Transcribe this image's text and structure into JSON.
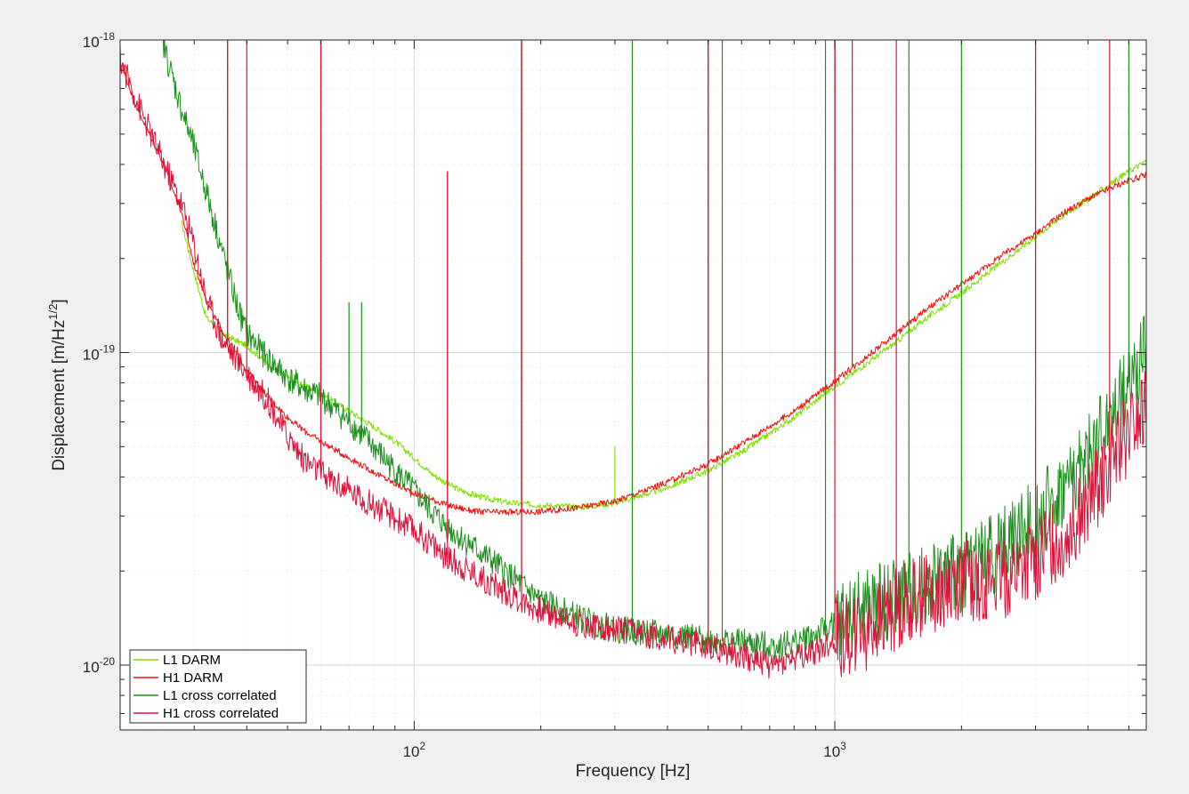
{
  "chart_data": {
    "type": "line",
    "title": "",
    "xlabel": "Frequency [Hz]",
    "ylabel_main": "Displacement [m/Hz",
    "ylabel_sup": "1/2",
    "ylabel_close": "]",
    "xscale": "log",
    "yscale": "log",
    "xlim": [
      20,
      5500
    ],
    "ylim": [
      6.2e-21,
      1e-18
    ],
    "grid": true,
    "legend_position": "bottom-left",
    "x_ticks": [
      {
        "value": 100,
        "base": "10",
        "exp": "2"
      },
      {
        "value": 1000,
        "base": "10",
        "exp": "3"
      }
    ],
    "y_ticks": [
      {
        "value": 1e-20,
        "base": "10",
        "exp": "-20"
      },
      {
        "value": 1e-19,
        "base": "10",
        "exp": "-19"
      },
      {
        "value": 1e-18,
        "base": "10",
        "exp": "-18"
      }
    ],
    "series": [
      {
        "name": "L1 DARM",
        "color": "#7fe000",
        "points": [
          [
            28,
            2.6e-19
          ],
          [
            30,
            1.8e-19
          ],
          [
            32,
            1.3e-19
          ],
          [
            35,
            1.15e-19
          ],
          [
            40,
            1.05e-19
          ],
          [
            45,
            9.2e-20
          ],
          [
            50,
            8.3e-20
          ],
          [
            55,
            7.8e-20
          ],
          [
            60,
            7.4e-20
          ],
          [
            70,
            6.5e-20
          ],
          [
            80,
            5.8e-20
          ],
          [
            90,
            5.2e-20
          ],
          [
            100,
            4.6e-20
          ],
          [
            110,
            4.1e-20
          ],
          [
            120,
            3.8e-20
          ],
          [
            130,
            3.6e-20
          ],
          [
            150,
            3.4e-20
          ],
          [
            170,
            3.3e-20
          ],
          [
            200,
            3.25e-20
          ],
          [
            250,
            3.2e-20
          ],
          [
            300,
            3.3e-20
          ],
          [
            350,
            3.5e-20
          ],
          [
            400,
            3.7e-20
          ],
          [
            450,
            3.95e-20
          ],
          [
            500,
            4.2e-20
          ],
          [
            600,
            4.8e-20
          ],
          [
            700,
            5.5e-20
          ],
          [
            800,
            6.2e-20
          ],
          [
            900,
            7e-20
          ],
          [
            1000,
            7.8e-20
          ],
          [
            1200,
            9.3e-20
          ],
          [
            1400,
            1.08e-19
          ],
          [
            1600,
            1.25e-19
          ],
          [
            2000,
            1.55e-19
          ],
          [
            2500,
            1.95e-19
          ],
          [
            3000,
            2.35e-19
          ],
          [
            3500,
            2.75e-19
          ],
          [
            4000,
            3.1e-19
          ],
          [
            4500,
            3.45e-19
          ],
          [
            5000,
            3.8e-19
          ],
          [
            5500,
            4.1e-19
          ]
        ],
        "spikes": [
          [
            60,
            1.5e-19
          ],
          [
            120,
            6e-20
          ],
          [
            180,
            1e-18
          ],
          [
            300,
            5e-20
          ],
          [
            500,
            1e-18
          ],
          [
            1000,
            1e-18
          ]
        ]
      },
      {
        "name": "H1 DARM",
        "color": "#ee1010",
        "points": [
          [
            20,
            8.5e-19
          ],
          [
            22,
            6e-19
          ],
          [
            25,
            4.2e-19
          ],
          [
            28,
            2.8e-19
          ],
          [
            30,
            1.9e-19
          ],
          [
            33,
            1.35e-19
          ],
          [
            36,
            1.1e-19
          ],
          [
            40,
            8.8e-20
          ],
          [
            45,
            7.2e-20
          ],
          [
            50,
            6.2e-20
          ],
          [
            55,
            5.6e-20
          ],
          [
            60,
            5.2e-20
          ],
          [
            70,
            4.6e-20
          ],
          [
            80,
            4.15e-20
          ],
          [
            90,
            3.8e-20
          ],
          [
            100,
            3.55e-20
          ],
          [
            120,
            3.25e-20
          ],
          [
            140,
            3.1e-20
          ],
          [
            160,
            3.08e-20
          ],
          [
            200,
            3.1e-20
          ],
          [
            250,
            3.2e-20
          ],
          [
            300,
            3.35e-20
          ],
          [
            350,
            3.6e-20
          ],
          [
            400,
            3.85e-20
          ],
          [
            500,
            4.4e-20
          ],
          [
            600,
            5.1e-20
          ],
          [
            700,
            5.8e-20
          ],
          [
            800,
            6.5e-20
          ],
          [
            900,
            7.3e-20
          ],
          [
            1000,
            8.1e-20
          ],
          [
            1200,
            9.8e-20
          ],
          [
            1400,
            1.15e-19
          ],
          [
            1600,
            1.33e-19
          ],
          [
            2000,
            1.65e-19
          ],
          [
            2500,
            2.05e-19
          ],
          [
            3000,
            2.4e-19
          ],
          [
            3500,
            2.8e-19
          ],
          [
            4000,
            3.1e-19
          ],
          [
            4500,
            3.35e-19
          ],
          [
            5000,
            3.55e-19
          ],
          [
            5500,
            3.7e-19
          ]
        ],
        "spikes": [
          [
            36,
            1e-18
          ],
          [
            60,
            1e-18
          ],
          [
            120,
            3.8e-19
          ],
          [
            180,
            1e-18
          ],
          [
            500,
            1e-18
          ],
          [
            1000,
            1e-18
          ],
          [
            1100,
            1e-18
          ]
        ]
      },
      {
        "name": "L1 cross correlated",
        "color": "#1e8f1e",
        "points": [
          [
            25,
            1.05e-18
          ],
          [
            26,
            8.5e-19
          ],
          [
            28,
            6e-19
          ],
          [
            30,
            4.5e-19
          ],
          [
            32,
            3.3e-19
          ],
          [
            35,
            2.1e-19
          ],
          [
            38,
            1.4e-19
          ],
          [
            40,
            1.15e-19
          ],
          [
            45,
            9.5e-20
          ],
          [
            50,
            8.3e-20
          ],
          [
            55,
            7.6e-20
          ],
          [
            60,
            7.2e-20
          ],
          [
            70,
            6e-20
          ],
          [
            80,
            5e-20
          ],
          [
            90,
            4.2e-20
          ],
          [
            100,
            3.6e-20
          ],
          [
            110,
            3.1e-20
          ],
          [
            120,
            2.75e-20
          ],
          [
            140,
            2.35e-20
          ],
          [
            160,
            2.05e-20
          ],
          [
            180,
            1.8e-20
          ],
          [
            200,
            1.6e-20
          ],
          [
            250,
            1.4e-20
          ],
          [
            300,
            1.3e-20
          ],
          [
            400,
            1.25e-20
          ],
          [
            500,
            1.2e-20
          ],
          [
            600,
            1.18e-20
          ],
          [
            700,
            1.15e-20
          ],
          [
            800,
            1.18e-20
          ],
          [
            900,
            1.25e-20
          ],
          [
            1000,
            1.35e-20
          ],
          [
            1200,
            1.5e-20
          ],
          [
            1500,
            1.7e-20
          ],
          [
            2000,
            2e-20
          ],
          [
            2500,
            2.4e-20
          ],
          [
            3000,
            2.9e-20
          ],
          [
            3500,
            3.6e-20
          ],
          [
            4000,
            4.6e-20
          ],
          [
            4500,
            6e-20
          ],
          [
            5000,
            8e-20
          ],
          [
            5500,
            1e-19
          ]
        ],
        "spikes": [
          [
            36,
            1e-18
          ],
          [
            60,
            1e-18
          ],
          [
            70,
            1.45e-19
          ],
          [
            75,
            1.45e-19
          ],
          [
            180,
            1e-18
          ],
          [
            330,
            1e-18
          ],
          [
            500,
            1e-18
          ],
          [
            540,
            1e-18
          ],
          [
            950,
            1e-18
          ],
          [
            1500,
            1e-18
          ],
          [
            2000,
            1e-18
          ],
          [
            3000,
            1e-18
          ],
          [
            5000,
            1e-18
          ]
        ]
      },
      {
        "name": "H1 cross correlated",
        "color": "#dc143c",
        "points": [
          [
            20,
            8.7e-19
          ],
          [
            22,
            6.3e-19
          ],
          [
            25,
            4.2e-19
          ],
          [
            28,
            3e-19
          ],
          [
            30,
            2.2e-19
          ],
          [
            32,
            1.5e-19
          ],
          [
            35,
            1.1e-19
          ],
          [
            40,
            8.6e-20
          ],
          [
            45,
            7e-20
          ],
          [
            50,
            5.4e-20
          ],
          [
            55,
            4.5e-20
          ],
          [
            60,
            4.1e-20
          ],
          [
            70,
            3.6e-20
          ],
          [
            80,
            3.25e-20
          ],
          [
            90,
            2.95e-20
          ],
          [
            100,
            2.7e-20
          ],
          [
            110,
            2.45e-20
          ],
          [
            120,
            2.2e-20
          ],
          [
            140,
            1.95e-20
          ],
          [
            160,
            1.75e-20
          ],
          [
            180,
            1.6e-20
          ],
          [
            200,
            1.5e-20
          ],
          [
            250,
            1.35e-20
          ],
          [
            300,
            1.3e-20
          ],
          [
            400,
            1.22e-20
          ],
          [
            500,
            1.15e-20
          ],
          [
            600,
            1.08e-20
          ],
          [
            700,
            1e-20
          ],
          [
            800,
            1.05e-20
          ],
          [
            900,
            1.1e-20
          ],
          [
            1000,
            1.2e-20
          ],
          [
            1200,
            1.3e-20
          ],
          [
            1500,
            1.6e-20
          ],
          [
            2000,
            1.9e-20
          ],
          [
            2500,
            1.85e-20
          ],
          [
            3000,
            2.2e-20
          ],
          [
            3500,
            2.6e-20
          ],
          [
            4000,
            3.2e-20
          ],
          [
            4500,
            4.5e-20
          ],
          [
            5000,
            5.5e-20
          ],
          [
            5500,
            6.5e-20
          ]
        ],
        "spikes": [
          [
            36,
            1e-18
          ],
          [
            40,
            1e-18
          ],
          [
            60,
            1e-18
          ],
          [
            120,
            3.8e-19
          ],
          [
            180,
            1e-18
          ],
          [
            500,
            1e-18
          ],
          [
            1000,
            1e-18
          ],
          [
            1400,
            1e-18
          ],
          [
            3000,
            1e-18
          ],
          [
            4500,
            1e-18
          ]
        ]
      }
    ]
  }
}
